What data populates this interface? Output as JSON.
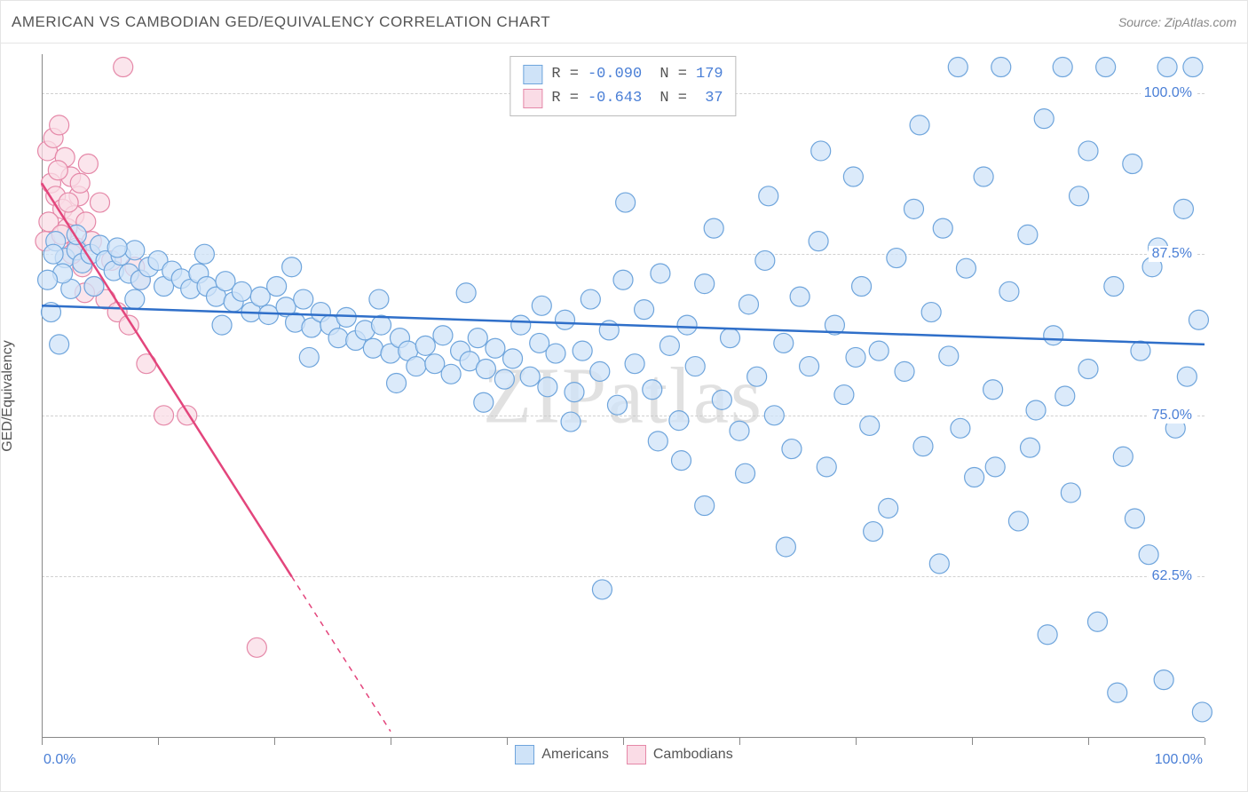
{
  "header": {
    "title": "AMERICAN VS CAMBODIAN GED/EQUIVALENCY CORRELATION CHART",
    "source": "Source: ZipAtlas.com"
  },
  "watermark": "ZIPatlas",
  "chart": {
    "type": "scatter",
    "y_axis_title": "GED/Equivalency",
    "x_min": 0,
    "x_max": 100,
    "y_min": 50,
    "y_max": 103,
    "y_ticks": [
      62.5,
      75.0,
      87.5,
      100.0
    ],
    "y_tick_labels": [
      "62.5%",
      "75.0%",
      "87.5%",
      "100.0%"
    ],
    "x_left_label": "0.0%",
    "x_right_label": "100.0%",
    "x_tick_positions": [
      0,
      10,
      20,
      30,
      40,
      50,
      60,
      70,
      80,
      90,
      100
    ],
    "grid_color": "#d0d0d0",
    "background_color": "#ffffff",
    "marker_radius": 11,
    "marker_stroke_width": 1.2,
    "line_width": 2.5,
    "series": {
      "americans": {
        "label": "Americans",
        "fill": "#cfe3f8",
        "stroke": "#6fa5dc",
        "line_color": "#2f6fc9",
        "r_value": "-0.090",
        "n_value": "179",
        "trend": {
          "x1": 0,
          "y1": 83.5,
          "x2": 100,
          "y2": 80.5
        },
        "points": [
          [
            1.5,
            80.5
          ],
          [
            2.0,
            87.2
          ],
          [
            3.0,
            87.8
          ],
          [
            3.5,
            86.8
          ],
          [
            4.2,
            87.5
          ],
          [
            5.0,
            88.2
          ],
          [
            5.5,
            87.0
          ],
          [
            6.2,
            86.2
          ],
          [
            6.8,
            87.4
          ],
          [
            7.5,
            86.0
          ],
          [
            8.0,
            87.8
          ],
          [
            8.5,
            85.5
          ],
          [
            9.2,
            86.5
          ],
          [
            10.0,
            87.0
          ],
          [
            10.5,
            85.0
          ],
          [
            11.2,
            86.2
          ],
          [
            12.0,
            85.6
          ],
          [
            12.8,
            84.8
          ],
          [
            13.5,
            86.0
          ],
          [
            14.2,
            85.0
          ],
          [
            15.0,
            84.2
          ],
          [
            15.8,
            85.4
          ],
          [
            16.5,
            83.8
          ],
          [
            17.2,
            84.6
          ],
          [
            18.0,
            83.0
          ],
          [
            18.8,
            84.2
          ],
          [
            19.5,
            82.8
          ],
          [
            20.2,
            85.0
          ],
          [
            21.0,
            83.4
          ],
          [
            21.8,
            82.2
          ],
          [
            22.5,
            84.0
          ],
          [
            23.2,
            81.8
          ],
          [
            24.0,
            83.0
          ],
          [
            24.8,
            82.0
          ],
          [
            25.5,
            81.0
          ],
          [
            26.2,
            82.6
          ],
          [
            27.0,
            80.8
          ],
          [
            27.8,
            81.6
          ],
          [
            28.5,
            80.2
          ],
          [
            29.2,
            82.0
          ],
          [
            30.0,
            79.8
          ],
          [
            30.8,
            81.0
          ],
          [
            31.5,
            80.0
          ],
          [
            32.2,
            78.8
          ],
          [
            33.0,
            80.4
          ],
          [
            33.8,
            79.0
          ],
          [
            34.5,
            81.2
          ],
          [
            35.2,
            78.2
          ],
          [
            36.0,
            80.0
          ],
          [
            36.8,
            79.2
          ],
          [
            37.5,
            81.0
          ],
          [
            38.2,
            78.6
          ],
          [
            39.0,
            80.2
          ],
          [
            39.8,
            77.8
          ],
          [
            40.5,
            79.4
          ],
          [
            41.2,
            82.0
          ],
          [
            42.0,
            78.0
          ],
          [
            42.8,
            80.6
          ],
          [
            43.5,
            77.2
          ],
          [
            44.2,
            79.8
          ],
          [
            45.0,
            82.4
          ],
          [
            45.8,
            76.8
          ],
          [
            46.5,
            80.0
          ],
          [
            47.2,
            84.0
          ],
          [
            48.0,
            78.4
          ],
          [
            48.8,
            81.6
          ],
          [
            49.5,
            75.8
          ],
          [
            50.2,
            91.5
          ],
          [
            51.0,
            79.0
          ],
          [
            51.8,
            83.2
          ],
          [
            52.5,
            77.0
          ],
          [
            53.2,
            86.0
          ],
          [
            54.0,
            80.4
          ],
          [
            54.8,
            74.6
          ],
          [
            55.5,
            82.0
          ],
          [
            56.2,
            78.8
          ],
          [
            57.0,
            85.2
          ],
          [
            57.8,
            89.5
          ],
          [
            58.5,
            76.2
          ],
          [
            59.2,
            81.0
          ],
          [
            60.0,
            73.8
          ],
          [
            60.8,
            83.6
          ],
          [
            61.5,
            78.0
          ],
          [
            62.2,
            87.0
          ],
          [
            63.0,
            75.0
          ],
          [
            63.8,
            80.6
          ],
          [
            64.5,
            72.4
          ],
          [
            65.2,
            84.2
          ],
          [
            66.0,
            78.8
          ],
          [
            66.8,
            88.5
          ],
          [
            67.5,
            71.0
          ],
          [
            68.2,
            82.0
          ],
          [
            69.0,
            76.6
          ],
          [
            69.8,
            93.5
          ],
          [
            70.5,
            85.0
          ],
          [
            71.2,
            74.2
          ],
          [
            72.0,
            80.0
          ],
          [
            72.8,
            67.8
          ],
          [
            73.5,
            87.2
          ],
          [
            74.2,
            78.4
          ],
          [
            75.0,
            91.0
          ],
          [
            75.8,
            72.6
          ],
          [
            76.5,
            83.0
          ],
          [
            77.2,
            63.5
          ],
          [
            78.0,
            79.6
          ],
          [
            78.8,
            102.0
          ],
          [
            79.5,
            86.4
          ],
          [
            80.2,
            70.2
          ],
          [
            81.0,
            93.5
          ],
          [
            81.8,
            77.0
          ],
          [
            82.5,
            102.0
          ],
          [
            83.2,
            84.6
          ],
          [
            84.0,
            66.8
          ],
          [
            84.8,
            89.0
          ],
          [
            85.5,
            75.4
          ],
          [
            86.2,
            98.0
          ],
          [
            87.0,
            81.2
          ],
          [
            87.8,
            102.0
          ],
          [
            88.5,
            69.0
          ],
          [
            89.2,
            92.0
          ],
          [
            90.0,
            78.6
          ],
          [
            90.8,
            59.0
          ],
          [
            91.5,
            102.0
          ],
          [
            92.2,
            85.0
          ],
          [
            93.0,
            71.8
          ],
          [
            93.8,
            94.5
          ],
          [
            94.5,
            80.0
          ],
          [
            95.2,
            64.2
          ],
          [
            96.0,
            88.0
          ],
          [
            96.8,
            102.0
          ],
          [
            97.5,
            74.0
          ],
          [
            98.2,
            91.0
          ],
          [
            99.0,
            102.0
          ],
          [
            99.5,
            82.4
          ],
          [
            48.2,
            61.5
          ],
          [
            57.0,
            68.0
          ],
          [
            64.0,
            64.8
          ],
          [
            71.5,
            66.0
          ],
          [
            79.0,
            74.0
          ],
          [
            86.5,
            58.0
          ],
          [
            92.5,
            53.5
          ],
          [
            75.5,
            97.5
          ],
          [
            67.0,
            95.5
          ],
          [
            82.0,
            71.0
          ],
          [
            88.0,
            76.5
          ],
          [
            94.0,
            67.0
          ],
          [
            60.5,
            70.5
          ],
          [
            53.0,
            73.0
          ],
          [
            45.5,
            74.5
          ],
          [
            38.0,
            76.0
          ],
          [
            30.5,
            77.5
          ],
          [
            23.0,
            79.5
          ],
          [
            15.5,
            82.0
          ],
          [
            8.0,
            84.0
          ],
          [
            4.5,
            85.0
          ],
          [
            2.5,
            84.8
          ],
          [
            1.8,
            86.0
          ],
          [
            1.2,
            88.5
          ],
          [
            0.8,
            83.0
          ],
          [
            50.0,
            85.5
          ],
          [
            55.0,
            71.5
          ],
          [
            62.5,
            92.0
          ],
          [
            70.0,
            79.5
          ],
          [
            77.5,
            89.5
          ],
          [
            85.0,
            72.5
          ],
          [
            90.0,
            95.5
          ],
          [
            95.5,
            86.5
          ],
          [
            98.5,
            78.0
          ],
          [
            43.0,
            83.5
          ],
          [
            36.5,
            84.5
          ],
          [
            29.0,
            84.0
          ],
          [
            21.5,
            86.5
          ],
          [
            14.0,
            87.5
          ],
          [
            6.5,
            88.0
          ],
          [
            3.0,
            89.0
          ],
          [
            1.0,
            87.5
          ],
          [
            0.5,
            85.5
          ],
          [
            99.8,
            52.0
          ],
          [
            96.5,
            54.5
          ]
        ]
      },
      "cambodians": {
        "label": "Cambodians",
        "fill": "#fadce6",
        "stroke": "#e588a8",
        "line_color": "#e3457c",
        "r_value": "-0.643",
        "n_value": "37",
        "trend_solid": {
          "x1": 0,
          "y1": 93.0,
          "x2": 21.5,
          "y2": 62.5
        },
        "trend_dashed": {
          "x1": 21.5,
          "y1": 62.5,
          "x2": 30.0,
          "y2": 50.5
        },
        "points": [
          [
            0.5,
            95.5
          ],
          [
            0.8,
            93.0
          ],
          [
            1.0,
            96.5
          ],
          [
            1.2,
            92.0
          ],
          [
            1.5,
            97.5
          ],
          [
            1.8,
            91.0
          ],
          [
            2.0,
            95.0
          ],
          [
            2.2,
            89.5
          ],
          [
            2.5,
            93.5
          ],
          [
            2.8,
            90.5
          ],
          [
            3.0,
            88.0
          ],
          [
            3.2,
            92.0
          ],
          [
            3.5,
            86.5
          ],
          [
            3.8,
            90.0
          ],
          [
            4.0,
            94.5
          ],
          [
            4.5,
            85.0
          ],
          [
            5.0,
            91.5
          ],
          [
            5.5,
            84.0
          ],
          [
            6.0,
            87.0
          ],
          [
            6.5,
            83.0
          ],
          [
            7.0,
            102.0
          ],
          [
            7.5,
            82.0
          ],
          [
            8.0,
            86.5
          ],
          [
            8.5,
            85.5
          ],
          [
            9.0,
            79.0
          ],
          [
            0.3,
            88.5
          ],
          [
            0.6,
            90.0
          ],
          [
            1.4,
            94.0
          ],
          [
            1.7,
            89.0
          ],
          [
            2.3,
            91.5
          ],
          [
            2.6,
            87.5
          ],
          [
            3.3,
            93.0
          ],
          [
            3.7,
            84.5
          ],
          [
            4.3,
            88.5
          ],
          [
            10.5,
            75.0
          ],
          [
            12.5,
            75.0
          ],
          [
            18.5,
            57.0
          ]
        ]
      }
    }
  },
  "bottom_legend": [
    {
      "label": "Americans",
      "fill": "#cfe3f8",
      "stroke": "#6fa5dc"
    },
    {
      "label": "Cambodians",
      "fill": "#fadce6",
      "stroke": "#e588a8"
    }
  ]
}
